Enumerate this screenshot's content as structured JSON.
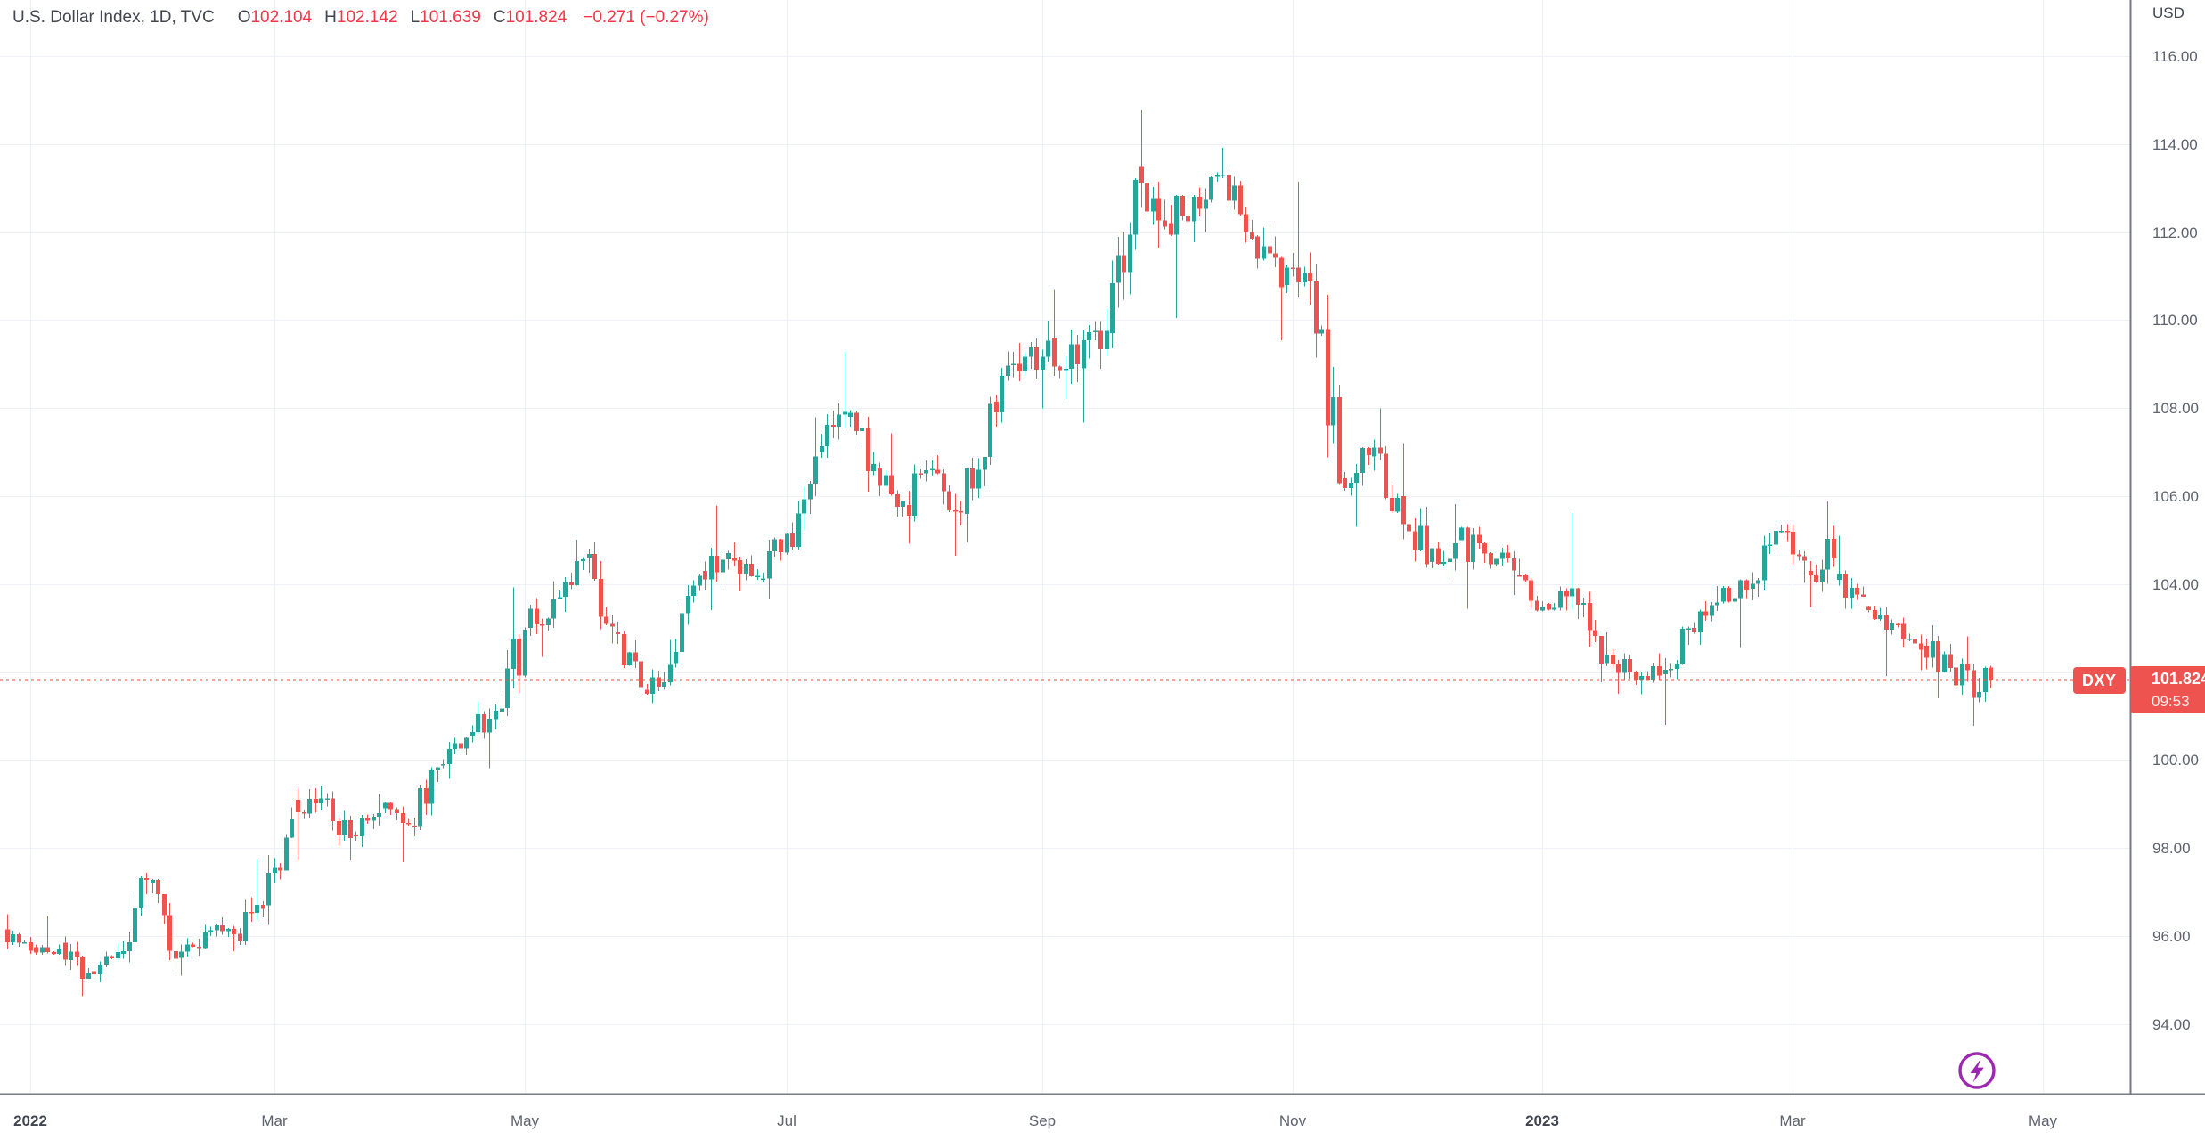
{
  "legend": {
    "symbol_title": "U.S. Dollar Index, 1D, TVC",
    "ohlc": [
      {
        "label": "O",
        "value": "102.104"
      },
      {
        "label": "H",
        "value": "102.142"
      },
      {
        "label": "L",
        "value": "101.639"
      },
      {
        "label": "C",
        "value": "101.824"
      }
    ],
    "change": "−0.271 (−0.27%)"
  },
  "price_axis": {
    "currency_label": "USD",
    "last_price_label": "101.824",
    "countdown": "09:53"
  },
  "price_line": {
    "symbol_badge": "DXY",
    "price": 101.824
  },
  "colors": {
    "up": "#26a69a",
    "down": "#ef5350",
    "accent_red": "#ef5350",
    "legend_value_red": "#f23645",
    "grid": "#eef1f8",
    "axis_line": "#757a85",
    "axis_text": "#5d626e",
    "axis_text_bold": "#40454f",
    "flash_purple": "#9c27b0"
  },
  "chart_data": {
    "type": "candlestick",
    "symbol": "DXY",
    "description": "U.S. Dollar Index",
    "interval": "1D",
    "exchange": "TVC",
    "currency": "USD",
    "current_price": 101.824,
    "countdown": "09:53",
    "y_ticks": [
      116,
      114,
      112,
      110,
      108,
      106,
      104,
      102,
      100,
      98,
      96,
      94
    ],
    "y_visible_range": [
      93.4,
      117.2
    ],
    "grid": true,
    "x_ticks": [
      {
        "date": "2022-01-01",
        "label": "2022",
        "bold": true
      },
      {
        "date": "2022-03-01",
        "label": "Mar",
        "bold": false
      },
      {
        "date": "2022-05-01",
        "label": "May",
        "bold": false
      },
      {
        "date": "2022-07-01",
        "label": "Jul",
        "bold": false
      },
      {
        "date": "2022-09-01",
        "label": "Sep",
        "bold": false
      },
      {
        "date": "2022-11-01",
        "label": "Nov",
        "bold": false
      },
      {
        "date": "2023-01-01",
        "label": "2023",
        "bold": true
      },
      {
        "date": "2023-03-01",
        "label": "Mar",
        "bold": false
      },
      {
        "date": "2023-05-01",
        "label": "May",
        "bold": false
      }
    ],
    "series_start_date": "2021-12-27",
    "weekly_ohlc_note": "weekly [open,high,low,close] anchors read from chart; rendered as 5 daily candles per week",
    "weekly_ohlc": [
      [
        96.15,
        96.5,
        95.6,
        95.67
      ],
      [
        95.75,
        96.46,
        95.57,
        95.72
      ],
      [
        95.85,
        95.99,
        94.63,
        95.17
      ],
      [
        95.2,
        95.83,
        94.95,
        95.64
      ],
      [
        95.6,
        97.44,
        95.4,
        97.27
      ],
      [
        97.2,
        97.3,
        95.14,
        95.48
      ],
      [
        95.5,
        96.25,
        95.1,
        96.08
      ],
      [
        96.1,
        96.43,
        95.66,
        96.04
      ],
      [
        96.05,
        97.74,
        95.8,
        96.62
      ],
      [
        96.7,
        98.93,
        96.25,
        98.65
      ],
      [
        99.1,
        99.42,
        97.71,
        99.13
      ],
      [
        99.1,
        99.29,
        97.72,
        98.23
      ],
      [
        98.3,
        99.23,
        98.02,
        98.79
      ],
      [
        98.9,
        99.05,
        97.68,
        98.57
      ],
      [
        98.5,
        99.84,
        98.27,
        99.84
      ],
      [
        99.9,
        100.76,
        99.57,
        100.5
      ],
      [
        100.55,
        101.33,
        99.82,
        101.12
      ],
      [
        101.1,
        103.93,
        100.9,
        102.96
      ],
      [
        103.0,
        104.07,
        102.35,
        103.66
      ],
      [
        103.7,
        105.01,
        103.37,
        104.56
      ],
      [
        104.6,
        104.97,
        102.65,
        103.03
      ],
      [
        102.9,
        103.15,
        101.43,
        101.66
      ],
      [
        101.6,
        102.73,
        101.29,
        102.16
      ],
      [
        102.2,
        104.23,
        102.1,
        104.19
      ],
      [
        104.3,
        105.79,
        103.41,
        104.7
      ],
      [
        104.6,
        104.95,
        103.83,
        104.19
      ],
      [
        104.1,
        105.15,
        103.67,
        105.14
      ],
      [
        105.15,
        107.79,
        104.79,
        106.9
      ],
      [
        107.0,
        109.29,
        106.87,
        107.91
      ],
      [
        107.8,
        107.95,
        106.1,
        106.73
      ],
      [
        106.65,
        107.43,
        105.53,
        105.9
      ],
      [
        105.8,
        106.81,
        104.92,
        106.62
      ],
      [
        106.6,
        106.93,
        104.64,
        105.63
      ],
      [
        105.6,
        108.26,
        104.96,
        108.1
      ],
      [
        108.15,
        109.48,
        107.58,
        108.84
      ],
      [
        108.85,
        109.99,
        107.99,
        109.53
      ],
      [
        109.6,
        110.69,
        108.2,
        109.0
      ],
      [
        108.9,
        110.27,
        107.67,
        109.76
      ],
      [
        109.7,
        113.23,
        109.36,
        113.19
      ],
      [
        113.5,
        114.78,
        111.64,
        112.12
      ],
      [
        112.2,
        112.84,
        110.05,
        112.8
      ],
      [
        112.8,
        113.92,
        112.0,
        113.31
      ],
      [
        113.3,
        113.48,
        111.76,
        111.85
      ],
      [
        111.9,
        112.13,
        109.54,
        110.75
      ],
      [
        110.8,
        113.15,
        110.35,
        110.88
      ],
      [
        110.9,
        111.28,
        106.27,
        106.29
      ],
      [
        106.4,
        107.11,
        105.3,
        106.93
      ],
      [
        106.9,
        107.99,
        105.62,
        105.96
      ],
      [
        106.0,
        107.2,
        104.37,
        104.45
      ],
      [
        104.5,
        105.82,
        104.1,
        104.93
      ],
      [
        105.0,
        105.3,
        103.44,
        104.7
      ],
      [
        104.7,
        104.89,
        103.75,
        104.31
      ],
      [
        104.2,
        104.57,
        103.38,
        103.49
      ],
      [
        103.55,
        105.63,
        103.4,
        103.9
      ],
      [
        103.9,
        103.91,
        101.77,
        102.2
      ],
      [
        102.2,
        102.9,
        101.51,
        101.99
      ],
      [
        102.0,
        102.43,
        101.5,
        101.92
      ],
      [
        101.95,
        103.03,
        100.8,
        102.99
      ],
      [
        103.0,
        103.96,
        102.62,
        103.58
      ],
      [
        103.6,
        104.11,
        102.55,
        103.86
      ],
      [
        103.9,
        105.32,
        103.63,
        105.21
      ],
      [
        105.2,
        105.36,
        104.03,
        104.53
      ],
      [
        104.3,
        105.88,
        103.47,
        104.58
      ],
      [
        104.1,
        105.1,
        103.44,
        103.71
      ],
      [
        103.5,
        103.51,
        101.91,
        103.12
      ],
      [
        103.1,
        103.24,
        102.04,
        102.51
      ],
      [
        102.6,
        103.06,
        101.4,
        102.09
      ],
      [
        102.1,
        102.81,
        100.78,
        101.55
      ],
      [
        101.55,
        102.12,
        101.32,
        102.095
      ]
    ],
    "last_candle": [
      102.104,
      102.142,
      101.639,
      101.824
    ]
  }
}
